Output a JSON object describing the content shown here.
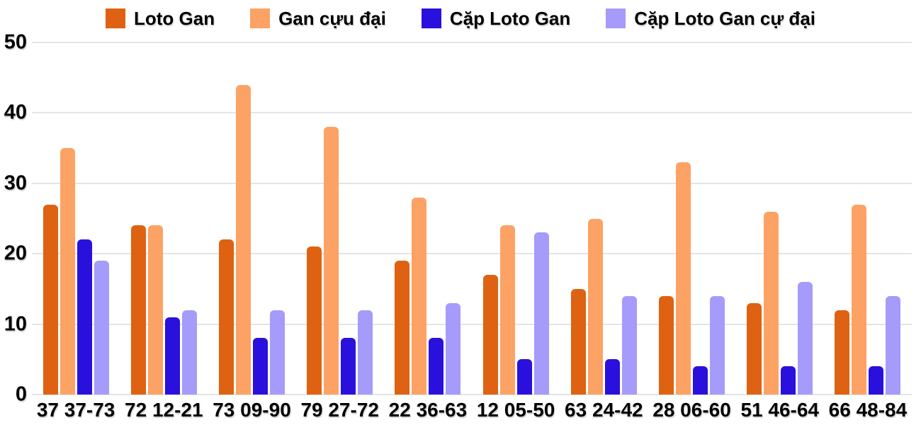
{
  "chart_data": {
    "type": "bar",
    "title": "",
    "xlabel": "",
    "ylabel": "",
    "categories": [
      "37 37-73",
      "72 12-21",
      "73 09-90",
      "79 27-72",
      "22 36-63",
      "12 05-50",
      "63 24-42",
      "28 06-60",
      "51 46-64",
      "66 48-84"
    ],
    "series": [
      {
        "name": "Loto Gan",
        "color": "#de6211",
        "values": [
          27,
          24,
          22,
          21,
          19,
          17,
          15,
          14,
          13,
          12
        ]
      },
      {
        "name": "Gan cựu đại",
        "color": "#fda265",
        "values": [
          35,
          24,
          44,
          38,
          28,
          24,
          25,
          33,
          26,
          27
        ]
      },
      {
        "name": "Cặp Loto Gan",
        "color": "#2a10dd",
        "values": [
          22,
          11,
          8,
          8,
          8,
          5,
          5,
          4,
          4,
          4
        ]
      },
      {
        "name": "Cặp Loto Gan cự đại",
        "color": "#a59bfa",
        "values": [
          19,
          12,
          12,
          12,
          13,
          23,
          14,
          14,
          16,
          14
        ]
      }
    ],
    "ylim": [
      0,
      50
    ],
    "yticks": [
      0,
      10,
      20,
      30,
      40,
      50
    ],
    "grid": true,
    "legend_position": "top"
  },
  "colors": {
    "background": "#ffffff",
    "gridline": "#e4e4e4",
    "text": "#000000"
  }
}
